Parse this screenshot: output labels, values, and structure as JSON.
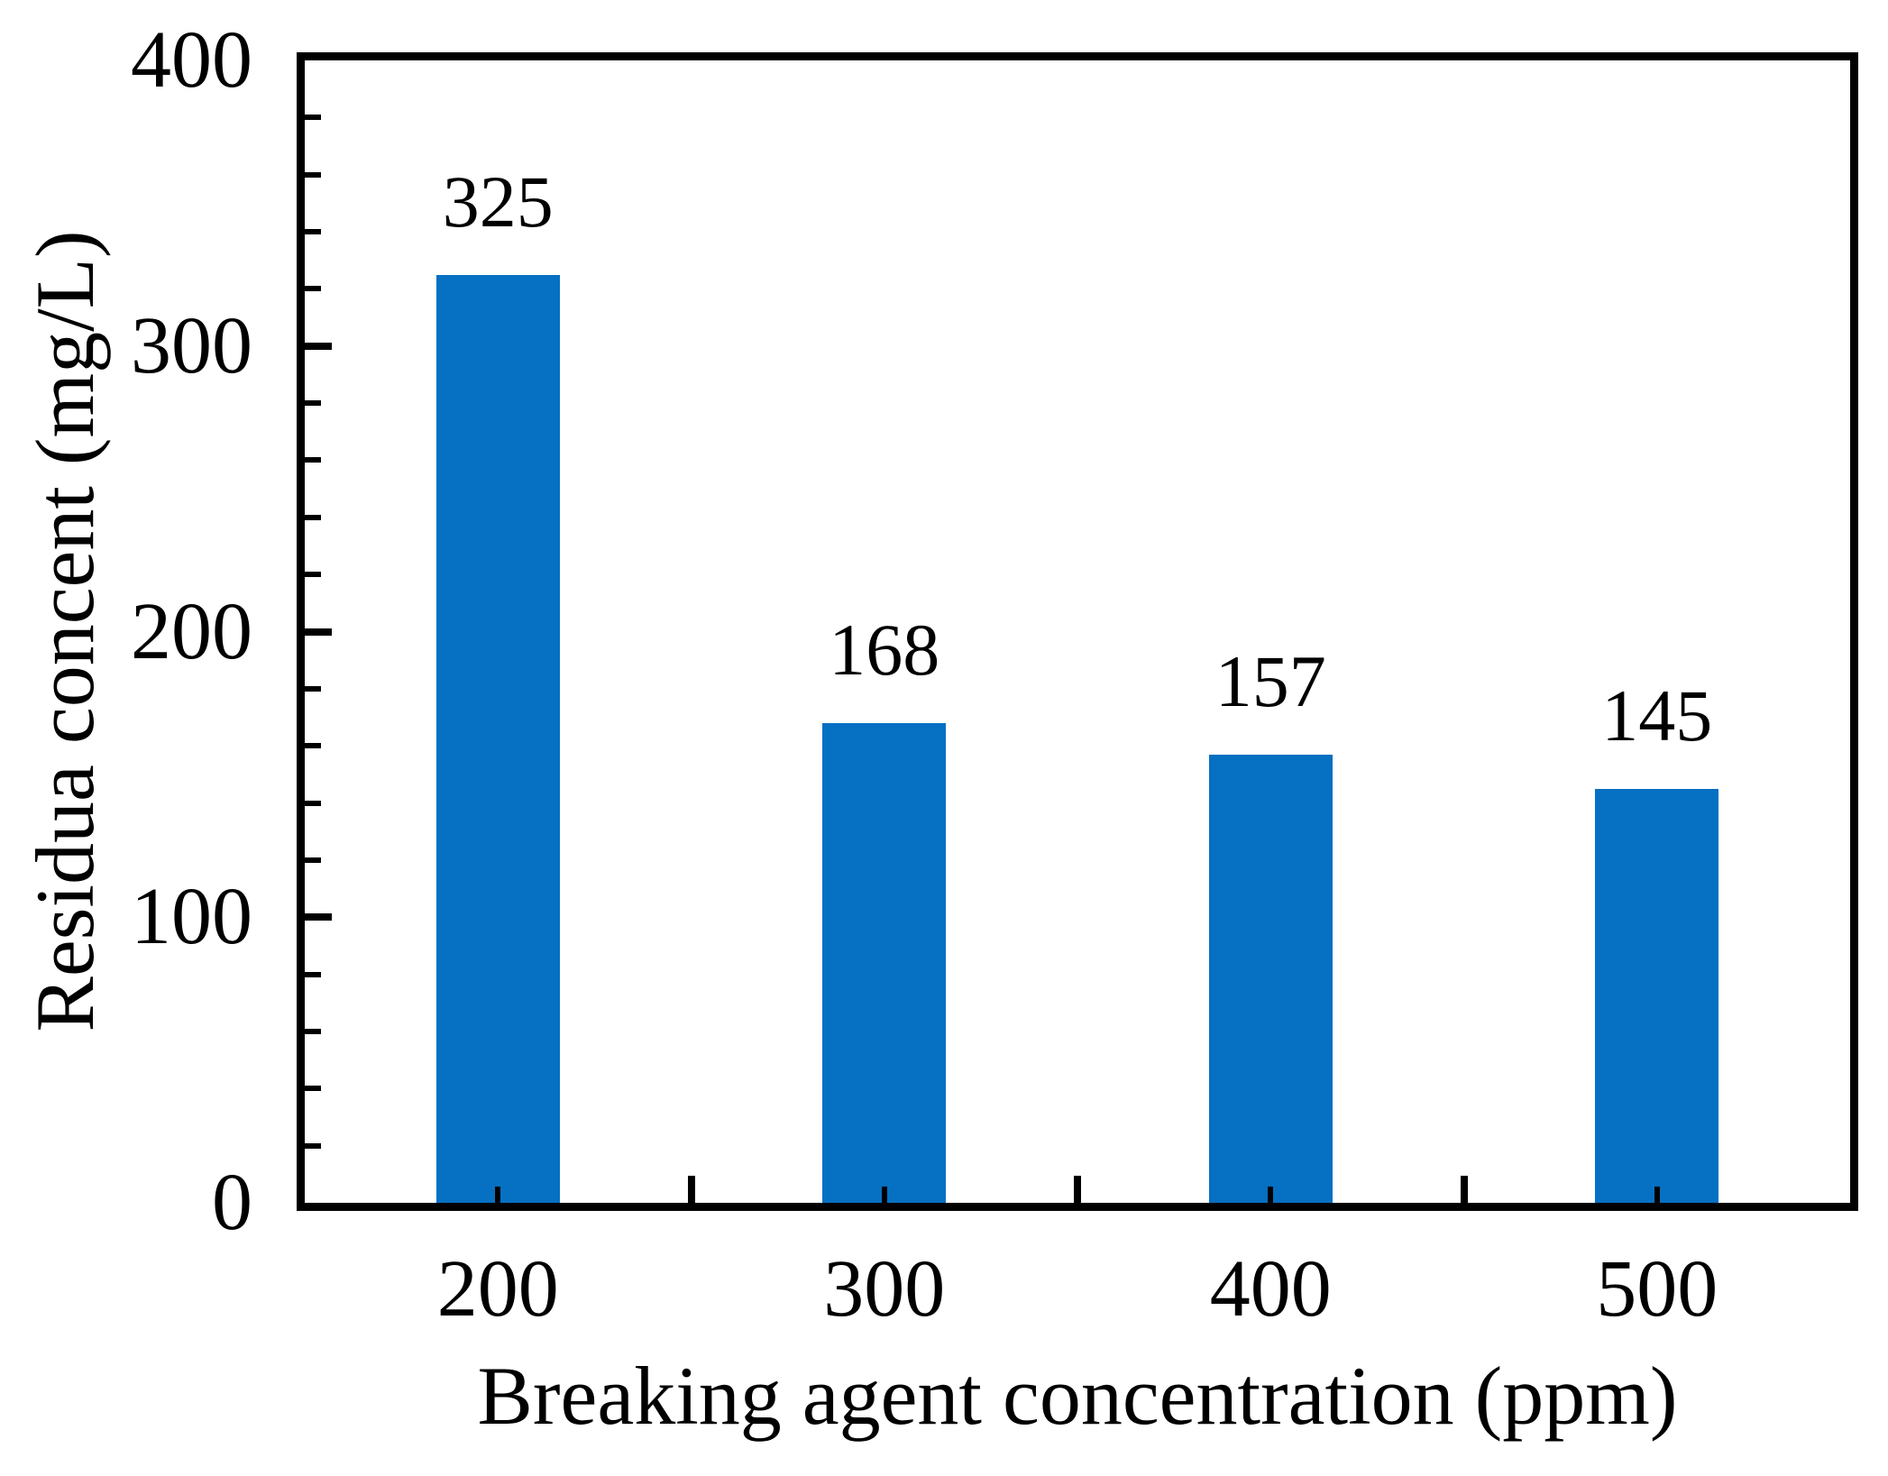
{
  "chart_data": {
    "type": "bar",
    "title": "",
    "xlabel": "Breaking agent concentration (ppm)",
    "ylabel": "Residua concent (mg/L)",
    "categories": [
      200,
      300,
      400,
      500
    ],
    "x_tick_labels": [
      "200",
      "300",
      "400",
      "500"
    ],
    "values": [
      325,
      168,
      157,
      145
    ],
    "bar_value_labels": [
      "325",
      "168",
      "157",
      "145"
    ],
    "y_tick_labels": [
      "0",
      "100",
      "200",
      "300",
      "400"
    ],
    "ylim": [
      0,
      400
    ],
    "xlim": [
      150,
      550
    ],
    "y_major_step": 100,
    "y_minor_step": 20,
    "x_major_ticks": [
      250,
      350,
      450
    ],
    "x_minor_ticks": [
      200,
      300,
      400,
      500
    ],
    "bar_width_x_units": 32,
    "bar_color": "#0670c2",
    "axis_color": "#000000",
    "text_color": "#000000",
    "grid": false,
    "legend": null
  }
}
